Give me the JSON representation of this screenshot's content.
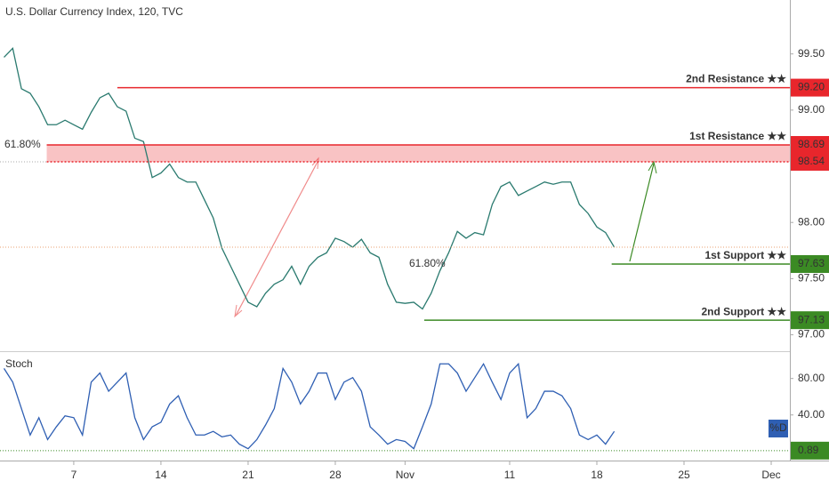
{
  "chart_data": [
    {
      "type": "line",
      "title": "U.S. Dollar Currency Index, 120, TVC",
      "xlim": [
        0.77,
        46.07
      ],
      "ylim": [
        96.87,
        99.98
      ],
      "xticks": [
        {
          "value": 5,
          "label": "7"
        },
        {
          "value": 10,
          "label": "14"
        },
        {
          "value": 15,
          "label": "21"
        },
        {
          "value": 20,
          "label": "28"
        },
        {
          "value": 24,
          "label": "Nov"
        },
        {
          "value": 30,
          "label": "11"
        },
        {
          "value": 35,
          "label": "18"
        },
        {
          "value": 40,
          "label": "25"
        },
        {
          "value": 45,
          "label": "Dec"
        }
      ],
      "yticks": [
        {
          "value": 97,
          "label": "97.00"
        },
        {
          "value": 97.5,
          "label": "97.50"
        },
        {
          "value": 98,
          "label": "98.00"
        },
        {
          "value": 99,
          "label": "99.00"
        },
        {
          "value": 99.5,
          "label": "99.50"
        }
      ],
      "series": [
        {
          "color": "#2a7a6f",
          "x": [
            1,
            1.5,
            2,
            2.5,
            3,
            3.5,
            4,
            4.5,
            5,
            5.5,
            6,
            6.5,
            7,
            7.5,
            8,
            8.5,
            9,
            9.5,
            10,
            10.5,
            11,
            11.5,
            12,
            12.5,
            13,
            13.5,
            14,
            14.5,
            15,
            15.5,
            16,
            16.5,
            17,
            17.5,
            18,
            18.5,
            19,
            19.5,
            20,
            20.5,
            21,
            21.5,
            22,
            22.5,
            23,
            23.5,
            24,
            24.5,
            25,
            25.5,
            26,
            26.5,
            27,
            27.5,
            28,
            28.5,
            29,
            29.5,
            30,
            30.5,
            31,
            31.5,
            32,
            32.5,
            33,
            33.5,
            34,
            34.5,
            35,
            35.5,
            36
          ],
          "values": [
            99.47,
            99.55,
            99.19,
            99.15,
            99.03,
            98.87,
            98.87,
            98.91,
            98.87,
            98.83,
            98.98,
            99.11,
            99.15,
            99.03,
            98.99,
            98.75,
            98.72,
            98.4,
            98.44,
            98.52,
            98.4,
            98.36,
            98.36,
            98.2,
            98.04,
            97.77,
            97.61,
            97.45,
            97.29,
            97.25,
            97.37,
            97.45,
            97.49,
            97.61,
            97.45,
            97.61,
            97.69,
            97.73,
            97.86,
            97.83,
            97.78,
            97.85,
            97.73,
            97.69,
            97.45,
            97.29,
            97.28,
            97.29,
            97.23,
            97.37,
            97.57,
            97.73,
            97.92,
            97.86,
            97.91,
            97.89,
            98.16,
            98.32,
            98.36,
            98.24,
            98.28,
            98.32,
            98.36,
            98.34,
            98.36,
            98.36,
            98.16,
            98.08,
            97.96,
            97.91,
            97.78
          ]
        }
      ],
      "levels": [
        {
          "name": "2nd Resistance ★★",
          "value": 99.2,
          "value_label": "99.20",
          "color": "#e8262c",
          "from": 7.5
        },
        {
          "name": "1st Resistance ★★",
          "value": 98.69,
          "value_label": "98.69",
          "color": "#e8262c",
          "from": 3.45
        },
        {
          "value": 98.54,
          "value_label": "98.54",
          "color": "#e8262c",
          "from": 3.45
        },
        {
          "name": "1st Support ★★",
          "value": 97.63,
          "value_label": "97.63",
          "color": "#3b8a24",
          "from": 35.85
        },
        {
          "name": "2nd Support ★★",
          "value": 97.13,
          "value_label": "97.13",
          "color": "#3b8a24",
          "from": 25.1
        }
      ],
      "annotations": [
        "61.80%",
        "61.80%"
      ]
    },
    {
      "type": "line",
      "title": "Stoch",
      "legend": "%D",
      "ylim": [
        -10,
        107
      ],
      "yticks": [
        {
          "value": 40,
          "label": "40.00"
        },
        {
          "value": 80,
          "label": "80.00"
        }
      ],
      "level": {
        "value": 0.89,
        "label": "0.89",
        "color": "#3b8a24"
      },
      "series": [
        {
          "color": "#2f5fb3",
          "x": [
            1,
            1.5,
            2,
            2.5,
            3,
            3.5,
            4,
            4.5,
            5,
            5.5,
            6,
            6.5,
            7,
            7.5,
            8,
            8.5,
            9,
            9.5,
            10,
            10.5,
            11,
            11.5,
            12,
            12.5,
            13,
            13.5,
            14,
            14.5,
            15,
            15.5,
            16,
            16.5,
            17,
            17.5,
            18,
            18.5,
            19,
            19.5,
            20,
            20.5,
            21,
            21.5,
            22,
            22.5,
            23,
            23.5,
            24,
            24.5,
            25,
            25.5,
            26,
            26.5,
            27,
            27.5,
            28,
            28.5,
            29,
            29.5,
            30,
            30.5,
            31,
            31.5,
            32,
            32.5,
            33,
            33.5,
            34,
            34.5,
            35,
            35.5,
            36
          ],
          "values": [
            91,
            76,
            47,
            18,
            37,
            13,
            27,
            39,
            37,
            18,
            76,
            86,
            66,
            76,
            86,
            37,
            13,
            27,
            32,
            52,
            61,
            37,
            18,
            18,
            22,
            16,
            18,
            8,
            3,
            13,
            29,
            47,
            91,
            76,
            52,
            66,
            86,
            86,
            57,
            76,
            81,
            66,
            27,
            18,
            8,
            13,
            11,
            3,
            27,
            52,
            96,
            96,
            86,
            66,
            81,
            96,
            76,
            57,
            86,
            96,
            37,
            47,
            66,
            66,
            61,
            47,
            18,
            13,
            18,
            8,
            22
          ]
        }
      ]
    }
  ]
}
